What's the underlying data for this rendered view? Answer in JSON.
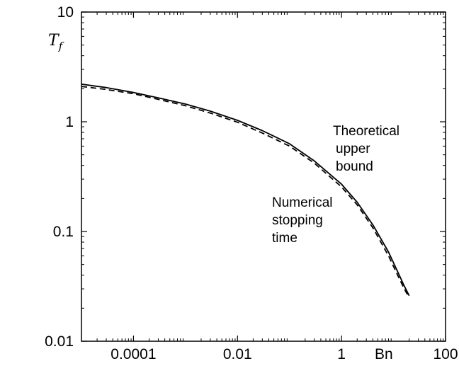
{
  "chart_data": {
    "type": "line",
    "x_scale": "log",
    "y_scale": "log",
    "xlim": [
      1e-05,
      100
    ],
    "ylim": [
      0.01,
      10
    ],
    "xlabel": "Bn",
    "ylabel": "T_f",
    "grid": false,
    "x_ticks": [
      {
        "value": 0.0001,
        "label": "0.0001"
      },
      {
        "value": 0.01,
        "label": "0.01"
      },
      {
        "value": 1,
        "label": "1"
      },
      {
        "value": 100,
        "label": "100"
      }
    ],
    "y_ticks": [
      {
        "value": 0.01,
        "label": "0.01"
      },
      {
        "value": 0.1,
        "label": "0.1"
      },
      {
        "value": 1,
        "label": "1"
      },
      {
        "value": 10,
        "label": "10"
      }
    ],
    "series": [
      {
        "name": "Theoretical upper bound",
        "style": "solid",
        "x": [
          1e-05,
          3e-05,
          0.0001,
          0.0003,
          0.001,
          0.003,
          0.01,
          0.03,
          0.1,
          0.3,
          1,
          2,
          4,
          8,
          12,
          16,
          20
        ],
        "y": [
          2.2,
          2.05,
          1.85,
          1.65,
          1.45,
          1.25,
          1.03,
          0.83,
          0.63,
          0.44,
          0.27,
          0.185,
          0.115,
          0.065,
          0.043,
          0.032,
          0.026
        ]
      },
      {
        "name": "Numerical stopping time",
        "style": "dashed",
        "x": [
          1e-05,
          3e-05,
          0.0001,
          0.0003,
          0.001,
          0.003,
          0.01,
          0.03,
          0.1,
          0.3,
          1,
          2,
          4,
          8,
          12,
          16,
          20
        ],
        "y": [
          2.1,
          1.97,
          1.8,
          1.6,
          1.4,
          1.2,
          0.99,
          0.79,
          0.6,
          0.42,
          0.255,
          0.175,
          0.108,
          0.06,
          0.04,
          0.03,
          0.025
        ]
      }
    ],
    "annotations": [
      {
        "lines": [
          "Theoretical",
          "upper",
          "bound"
        ]
      },
      {
        "lines": [
          "Numerical",
          "stopping",
          "time"
        ]
      }
    ]
  }
}
